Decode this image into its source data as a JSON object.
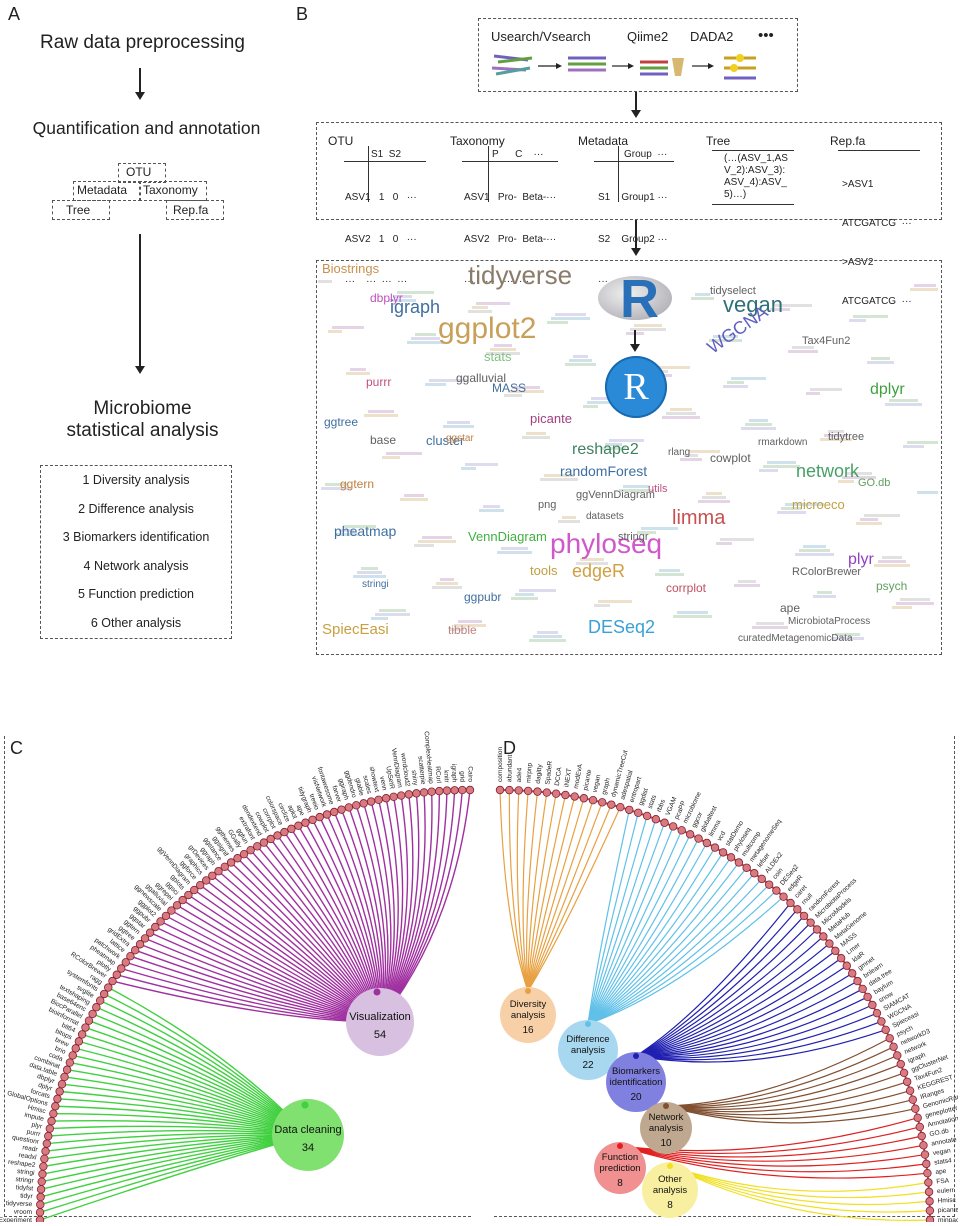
{
  "panels": {
    "a": "A",
    "b": "B",
    "c": "C",
    "d": "D"
  },
  "panelA": {
    "step1": "Raw data preprocessing",
    "step2": "Quantification and annotation",
    "boxes": {
      "otu": "OTU",
      "metadata": "Metadata",
      "taxonomy": "Taxonomy",
      "tree": "Tree",
      "repfa": "Rep.fa"
    },
    "step3_line1": "Microbiome",
    "step3_line2": "statistical analysis",
    "analyses": [
      "1  Diversity analysis",
      "2 Difference analysis",
      "3 Biomarkers identification",
      "4 Network analysis",
      "5 Function prediction",
      "6 Other analysis"
    ]
  },
  "panelB": {
    "tools": [
      "Usearch/Vsearch",
      "Qiime2",
      "DADA2",
      "•••"
    ],
    "tables": {
      "otu": {
        "title": "OTU",
        "head": "S1  S2",
        "rows": [
          "ASV1   1   0   ···",
          "ASV2   1   0   ···",
          "···    ···  ···  ···"
        ]
      },
      "taxonomy": {
        "title": "Taxonomy",
        "head": "P      C    ···",
        "rows": [
          "ASV1   Pro-  Beta-···",
          "ASV2   Pro-  Beta-···",
          "···    ···   ···  ···"
        ]
      },
      "metadata": {
        "title": "Metadata",
        "head": "Group  ···",
        "rows": [
          "S1    Group1 ···",
          "S2    Group2 ···",
          "···     ···"
        ]
      },
      "tree": {
        "title": "Tree",
        "body": "(…(ASV_1,AS\nV_2):ASV_3):\nASV_4):ASV_\n5)…)"
      },
      "repfa": {
        "title": "Rep.fa",
        "rows": [
          ">ASV1",
          "ATCGATCG  ···",
          ">ASV2",
          "ATCGATCG  ···"
        ]
      }
    },
    "r_letter": "R",
    "wordcloud": [
      {
        "t": "tidyverse",
        "c": "#8b7b6b",
        "s": 26
      },
      {
        "t": "ggplot2",
        "c": "#c8a05a",
        "s": 30
      },
      {
        "t": "vegan",
        "c": "#2f6f7a",
        "s": 22
      },
      {
        "t": "igraph",
        "c": "#3f6fa0",
        "s": 18
      },
      {
        "t": "phyloseq",
        "c": "#d058c8",
        "s": 28
      },
      {
        "t": "limma",
        "c": "#c85050",
        "s": 20
      },
      {
        "t": "edgeR",
        "c": "#d0a040",
        "s": 18
      },
      {
        "t": "DESeq2",
        "c": "#3aa0d8",
        "s": 18
      },
      {
        "t": "network",
        "c": "#48a068",
        "s": 18
      },
      {
        "t": "WGCNA",
        "c": "#6060c0",
        "s": 18
      },
      {
        "t": "reshape2",
        "c": "#3f8060",
        "s": 16
      },
      {
        "t": "randomForest",
        "c": "#3f6fa0",
        "s": 14
      },
      {
        "t": "dplyr",
        "c": "#40a040",
        "s": 16
      },
      {
        "t": "plyr",
        "c": "#9040c0",
        "s": 16
      },
      {
        "t": "pheatmap",
        "c": "#3f6fa0",
        "s": 14
      },
      {
        "t": "SpiecEasi",
        "c": "#c8a040",
        "s": 15
      },
      {
        "t": "VennDiagram",
        "c": "#40b040",
        "s": 13
      },
      {
        "t": "Biostrings",
        "c": "#c89050",
        "s": 13
      },
      {
        "t": "ggalluvial",
        "c": "#606060",
        "s": 12
      },
      {
        "t": "stats",
        "c": "#80c080",
        "s": 13
      },
      {
        "t": "picante",
        "c": "#a04080",
        "s": 13
      },
      {
        "t": "cluster",
        "c": "#4070a0",
        "s": 13
      },
      {
        "t": "purrr",
        "c": "#c05080",
        "s": 12
      },
      {
        "t": "ggtree",
        "c": "#4070a0",
        "s": 12
      },
      {
        "t": "base",
        "c": "#606060",
        "s": 12
      },
      {
        "t": "ggtern",
        "c": "#c08040",
        "s": 12
      },
      {
        "t": "MASS",
        "c": "#4070a0",
        "s": 12
      },
      {
        "t": "cowplot",
        "c": "#606060",
        "s": 12
      },
      {
        "t": "tidytree",
        "c": "#606060",
        "s": 11
      },
      {
        "t": "microeco",
        "c": "#c0a040",
        "s": 13
      },
      {
        "t": "tools",
        "c": "#c0a040",
        "s": 13
      },
      {
        "t": "ggpubr",
        "c": "#4070a0",
        "s": 12
      },
      {
        "t": "corrplot",
        "c": "#c05060",
        "s": 12
      },
      {
        "t": "tibble",
        "c": "#c08080",
        "s": 12
      },
      {
        "t": "psych",
        "c": "#60a060",
        "s": 12
      },
      {
        "t": "ape",
        "c": "#606060",
        "s": 12
      },
      {
        "t": "Tax4Fun2",
        "c": "#606060",
        "s": 11
      },
      {
        "t": "dbplyr",
        "c": "#c050c0",
        "s": 12
      },
      {
        "t": "ggVennDiagram",
        "c": "#606060",
        "s": 11
      },
      {
        "t": "RColorBrewer",
        "c": "#606060",
        "s": 11
      },
      {
        "t": "MicrobiotaProcess",
        "c": "#606060",
        "s": 10
      },
      {
        "t": "curatedMetagenomicData",
        "c": "#606060",
        "s": 10
      },
      {
        "t": "tidyselect",
        "c": "#606060",
        "s": 11
      },
      {
        "t": "GO.db",
        "c": "#60a060",
        "s": 11
      },
      {
        "t": "stringr",
        "c": "#606060",
        "s": 11
      },
      {
        "t": "png",
        "c": "#606060",
        "s": 11
      },
      {
        "t": "datasets",
        "c": "#606060",
        "s": 10
      },
      {
        "t": "ggstar",
        "c": "#c08040",
        "s": 10
      },
      {
        "t": "stringi",
        "c": "#4070a0",
        "s": 10
      },
      {
        "t": "rmarkdown",
        "c": "#606060",
        "s": 10
      },
      {
        "t": "rlang",
        "c": "#606060",
        "s": 10
      },
      {
        "t": "utils",
        "c": "#c05080",
        "s": 11
      }
    ]
  },
  "panelC": {
    "hubs": [
      {
        "name": "Visualization",
        "count": "54",
        "color": "#a030a0",
        "fill": "#d8c0e0"
      },
      {
        "name": "Data cleaning",
        "count": "34",
        "color": "#40d040",
        "fill": "#80e070"
      }
    ],
    "labels": [
      "Summarized Experiment",
      "vroom",
      "tidyverse",
      "tidyr",
      "tidyfst",
      "stringr",
      "stringi",
      "reshape2",
      "readxl",
      "readr",
      "questionr",
      "purrr",
      "plyr",
      "impute",
      "Hmisc",
      "GlobalOptions",
      "forcats",
      "dplyr",
      "dbplyr",
      "data.table",
      "combinat",
      "coda",
      "brio",
      "brew",
      "bitops",
      "bit64",
      "bioinformat",
      "BiocParallel",
      "base64enc",
      "textshaping",
      "svglite",
      "systemfonts",
      "ragg",
      "RColorBrewer",
      "plotly",
      "pheatmap",
      "patchwork",
      "lattice",
      "gridExtra",
      "ggtree",
      "ggtern",
      "ggstar",
      "ggpubr",
      "ggplot2",
      "ggnewscale",
      "ggalluvial",
      "ggrepel",
      "ggsci",
      "gplots",
      "ggVennDiagram",
      "ggforce",
      "graphics",
      "grDevices",
      "ggraph",
      "ggstance",
      "ggsignif",
      "ggthemes",
      "GGally",
      "ggfun",
      "extrafont",
      "dendextend",
      "cowplot",
      "corrplot",
      "colorspace",
      "circlize",
      "aplot",
      "ape",
      "tidygraph",
      "treeio",
      "visNetwork",
      "fontawesome",
      "farver",
      "ggiraph",
      "ggdendro",
      "gtable",
      "scales",
      "showtext",
      "venn",
      "UpSetR",
      "VennDiagram",
      "wordcloud2",
      "shiny",
      "scatterpie",
      "ComplexHeatmap",
      "RCurl",
      "knitr",
      "igraph",
      "grid",
      "Cairo"
    ]
  },
  "panelD": {
    "hubs": [
      {
        "name": "Diversity\nanalysis",
        "count": "16",
        "color": "#e8a040",
        "fill": "#f8d0a8"
      },
      {
        "name": "Difference\nanalysis",
        "count": "22",
        "color": "#60c0e8",
        "fill": "#a8d8f0"
      },
      {
        "name": "Biomarkers\nidentification",
        "count": "20",
        "color": "#2020b0",
        "fill": "#8080e0"
      },
      {
        "name": "Network\nanalysis",
        "count": "10",
        "color": "#805030",
        "fill": "#c0a890"
      },
      {
        "name": "Function\nprediction",
        "count": "8",
        "color": "#e02020",
        "fill": "#f09090"
      },
      {
        "name": "Other\nanalysis",
        "count": "8",
        "color": "#f0e020",
        "fill": "#f8f0a0"
      }
    ],
    "labels": [
      "minpack.lm",
      "picante",
      "Hmisc",
      "eulerr",
      "FSA",
      "ape",
      "stats4",
      "vegan",
      "annotate",
      "GO.db",
      "AnnotationDbi",
      "geneplotter",
      "GenomicRanges",
      "IRanges",
      "KEGGREST",
      "Tax4Fun2",
      "ggClusterNet",
      "igraph",
      "network",
      "networkD3",
      "psych",
      "Spieceasi",
      "WGCNA",
      "SIAMCAT",
      "snow",
      "baylum",
      "data.tree",
      "bnlearn",
      "gmnet",
      "klaR",
      "Lmer",
      "MASS",
      "MetaGenome",
      "MetaHub",
      "MicroModels",
      "MicrobiotaProcess",
      "randomForest",
      "rnull",
      "caret",
      "edgeR",
      "DESeq2",
      "coin",
      "ALDEx2",
      "lefser",
      "metagenomeSeq",
      "multcomp",
      "phyloseq",
      "statDemo",
      "vcd",
      "limma",
      "globaltest",
      "ggcor",
      "microbiome",
      "pcaPP",
      "VGAM",
      "rbbs",
      "stats",
      "ggdist",
      "entropart",
      "adespatial",
      "dynamicTreeCut",
      "graph",
      "vegan",
      "picante",
      "modEvA",
      "iNEXT",
      "DCCA",
      "SpadeR",
      "dagitty",
      "mirpnp",
      "ade4",
      "abundant",
      "composition"
    ]
  }
}
